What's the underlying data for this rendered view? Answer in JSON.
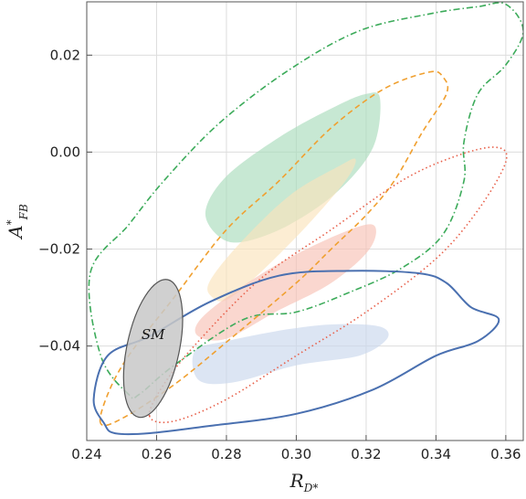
{
  "chart_data": {
    "type": "contour",
    "xlabel_main": "R",
    "xlabel_sub": "D*",
    "ylabel_main": "A",
    "ylabel_sup": "*",
    "ylabel_sub": "FB",
    "xlim": [
      0.24,
      0.365
    ],
    "ylim": [
      -0.0595,
      0.031
    ],
    "grid": true,
    "x_ticks": [
      0.24,
      0.26,
      0.28,
      0.3,
      0.32,
      0.34,
      0.36
    ],
    "x_tick_labels": [
      "0.24",
      "0.26",
      "0.28",
      "0.30",
      "0.32",
      "0.34",
      "0.36"
    ],
    "y_ticks": [
      -0.04,
      -0.02,
      0.0,
      0.02
    ],
    "y_tick_labels": [
      "−0.04",
      "−0.02",
      "0.00",
      "0.02"
    ],
    "filled_regions": [
      {
        "color": "#a9dcbc",
        "points": [
          [
            0.278,
            -0.0175
          ],
          [
            0.274,
            -0.0123
          ],
          [
            0.28,
            -0.005
          ],
          [
            0.295,
            0.003
          ],
          [
            0.31,
            0.009
          ],
          [
            0.32,
            0.012
          ],
          [
            0.324,
            0.011
          ],
          [
            0.322,
            0.001
          ],
          [
            0.312,
            -0.008
          ],
          [
            0.298,
            -0.015
          ],
          [
            0.285,
            -0.0185
          ]
        ]
      },
      {
        "color": "#fbe3bc",
        "points": [
          [
            0.276,
            -0.03
          ],
          [
            0.275,
            -0.027
          ],
          [
            0.283,
            -0.0195
          ],
          [
            0.298,
            -0.009
          ],
          [
            0.312,
            -0.003
          ],
          [
            0.317,
            -0.0015
          ],
          [
            0.314,
            -0.006
          ],
          [
            0.302,
            -0.016
          ],
          [
            0.288,
            -0.026
          ],
          [
            0.28,
            -0.0305
          ]
        ]
      },
      {
        "color": "#f7c2b6",
        "points": [
          [
            0.272,
            -0.038
          ],
          [
            0.272,
            -0.035
          ],
          [
            0.28,
            -0.03
          ],
          [
            0.295,
            -0.023
          ],
          [
            0.312,
            -0.017
          ],
          [
            0.322,
            -0.015
          ],
          [
            0.321,
            -0.02
          ],
          [
            0.31,
            -0.027
          ],
          [
            0.294,
            -0.033
          ],
          [
            0.28,
            -0.0385
          ]
        ]
      },
      {
        "color": "#c9d7ec",
        "points": [
          [
            0.272,
            -0.047
          ],
          [
            0.271,
            -0.041
          ],
          [
            0.28,
            -0.039
          ],
          [
            0.298,
            -0.0365
          ],
          [
            0.312,
            -0.0355
          ],
          [
            0.324,
            -0.036
          ],
          [
            0.326,
            -0.0385
          ],
          [
            0.318,
            -0.042
          ],
          [
            0.3,
            -0.044
          ],
          [
            0.282,
            -0.0475
          ]
        ]
      }
    ],
    "contours": [
      {
        "color": "#3cab5a",
        "style": "dashdot",
        "points": [
          [
            0.252,
            -0.05
          ],
          [
            0.244,
            -0.042
          ],
          [
            0.241,
            -0.025
          ],
          [
            0.252,
            -0.015
          ],
          [
            0.262,
            -0.006
          ],
          [
            0.278,
            0.006
          ],
          [
            0.298,
            0.017
          ],
          [
            0.318,
            0.025
          ],
          [
            0.338,
            0.0285
          ],
          [
            0.352,
            0.03
          ],
          [
            0.36,
            0.0305
          ],
          [
            0.365,
            0.025
          ],
          [
            0.36,
            0.018
          ],
          [
            0.352,
            0.012
          ],
          [
            0.348,
            0.002
          ],
          [
            0.348,
            -0.006
          ],
          [
            0.342,
            -0.017
          ],
          [
            0.33,
            -0.024
          ],
          [
            0.315,
            -0.029
          ],
          [
            0.3,
            -0.033
          ],
          [
            0.285,
            -0.0345
          ],
          [
            0.265,
            -0.044
          ],
          [
            0.255,
            -0.05
          ]
        ]
      },
      {
        "color": "#f0a030",
        "style": "dashed",
        "points": [
          [
            0.244,
            -0.056
          ],
          [
            0.246,
            -0.05
          ],
          [
            0.252,
            -0.042
          ],
          [
            0.265,
            -0.03
          ],
          [
            0.28,
            -0.016
          ],
          [
            0.295,
            -0.006
          ],
          [
            0.31,
            0.005
          ],
          [
            0.325,
            0.013
          ],
          [
            0.338,
            0.0165
          ],
          [
            0.342,
            0.0155
          ],
          [
            0.343,
            0.012
          ],
          [
            0.336,
            0.004
          ],
          [
            0.328,
            -0.006
          ],
          [
            0.32,
            -0.013
          ],
          [
            0.31,
            -0.02
          ],
          [
            0.3,
            -0.027
          ],
          [
            0.282,
            -0.038
          ],
          [
            0.265,
            -0.048
          ],
          [
            0.25,
            -0.055
          ]
        ]
      },
      {
        "color": "#e8604a",
        "style": "dotted",
        "points": [
          [
            0.258,
            -0.0545
          ],
          [
            0.262,
            -0.048
          ],
          [
            0.272,
            -0.039
          ],
          [
            0.29,
            -0.026
          ],
          [
            0.31,
            -0.016
          ],
          [
            0.33,
            -0.006
          ],
          [
            0.345,
            -0.001
          ],
          [
            0.357,
            0.001
          ],
          [
            0.36,
            -0.002
          ],
          [
            0.352,
            -0.012
          ],
          [
            0.34,
            -0.022
          ],
          [
            0.32,
            -0.033
          ],
          [
            0.3,
            -0.042
          ],
          [
            0.28,
            -0.051
          ],
          [
            0.265,
            -0.0555
          ]
        ]
      },
      {
        "color": "#4a70b0",
        "style": "solid",
        "points": [
          [
            0.245,
            -0.056
          ],
          [
            0.242,
            -0.051
          ],
          [
            0.246,
            -0.042
          ],
          [
            0.258,
            -0.038
          ],
          [
            0.275,
            -0.031
          ],
          [
            0.295,
            -0.0255
          ],
          [
            0.315,
            -0.0245
          ],
          [
            0.335,
            -0.025
          ],
          [
            0.343,
            -0.027
          ],
          [
            0.35,
            -0.032
          ],
          [
            0.358,
            -0.0345
          ],
          [
            0.352,
            -0.039
          ],
          [
            0.34,
            -0.042
          ],
          [
            0.322,
            -0.049
          ],
          [
            0.3,
            -0.054
          ],
          [
            0.275,
            -0.0565
          ],
          [
            0.258,
            -0.058
          ],
          [
            0.248,
            -0.058
          ]
        ]
      }
    ],
    "sm_ellipse": {
      "center": [
        0.259,
        -0.0405
      ],
      "semi_x": 0.0075,
      "semi_y": 0.0145,
      "tilt": 12,
      "fill": "#c8c8c8",
      "stroke": "#555555"
    },
    "annotations": [
      {
        "text": "SM",
        "x": 0.259,
        "y": -0.0386
      }
    ]
  }
}
